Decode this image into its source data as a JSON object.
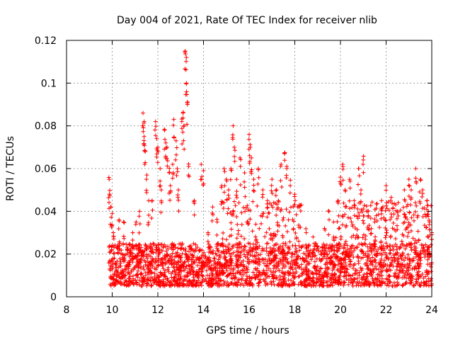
{
  "chart_data": {
    "type": "scatter",
    "title": "Day 004 of 2021, Rate Of TEC Index for receiver nlib",
    "xlabel": "GPS time / hours",
    "ylabel": "ROTI / TECUs",
    "xlim": [
      8,
      24
    ],
    "ylim": [
      0,
      0.12
    ],
    "x_ticks": [
      8,
      10,
      12,
      14,
      16,
      18,
      20,
      22,
      24
    ],
    "x_tick_labels": [
      "8",
      "10",
      "12",
      "14",
      "16",
      "18",
      "20",
      "22",
      "24"
    ],
    "y_ticks": [
      0,
      0.02,
      0.04,
      0.06,
      0.08,
      0.1,
      0.12
    ],
    "y_tick_labels": [
      "0",
      "0.02",
      "0.04",
      "0.06",
      "0.08",
      "0.1",
      "0.12"
    ],
    "grid": true,
    "marker": "plus",
    "marker_color": "#ff0000",
    "series": [
      {
        "name": "ROTI",
        "points": [
          [
            9.87,
            0.055
          ],
          [
            9.88,
            0.048
          ],
          [
            9.95,
            0.042
          ],
          [
            10.0,
            0.039
          ],
          [
            10.05,
            0.03
          ],
          [
            10.3,
            0.036
          ],
          [
            10.5,
            0.035
          ],
          [
            10.9,
            0.03
          ],
          [
            11.05,
            0.035
          ],
          [
            11.2,
            0.04
          ],
          [
            11.35,
            0.086
          ],
          [
            11.4,
            0.082
          ],
          [
            11.4,
            0.075
          ],
          [
            11.45,
            0.068
          ],
          [
            11.5,
            0.055
          ],
          [
            11.6,
            0.045
          ],
          [
            11.75,
            0.045
          ],
          [
            11.9,
            0.082
          ],
          [
            11.95,
            0.074
          ],
          [
            12.0,
            0.07
          ],
          [
            12.1,
            0.06
          ],
          [
            12.15,
            0.05
          ],
          [
            12.3,
            0.078
          ],
          [
            12.35,
            0.072
          ],
          [
            12.4,
            0.07
          ],
          [
            12.5,
            0.058
          ],
          [
            12.55,
            0.052
          ],
          [
            12.65,
            0.062
          ],
          [
            12.7,
            0.083
          ],
          [
            12.8,
            0.073
          ],
          [
            12.85,
            0.06
          ],
          [
            12.9,
            0.05
          ],
          [
            13.05,
            0.082
          ],
          [
            13.1,
            0.086
          ],
          [
            13.15,
            0.08
          ],
          [
            13.2,
            0.115
          ],
          [
            13.25,
            0.112
          ],
          [
            13.25,
            0.1
          ],
          [
            13.3,
            0.09
          ],
          [
            13.35,
            0.061
          ],
          [
            13.6,
            0.045
          ],
          [
            13.9,
            0.062
          ],
          [
            14.0,
            0.059
          ],
          [
            14.2,
            0.03
          ],
          [
            14.4,
            0.042
          ],
          [
            14.6,
            0.035
          ],
          [
            14.8,
            0.052
          ],
          [
            14.9,
            0.06
          ],
          [
            15.0,
            0.055
          ],
          [
            15.1,
            0.05
          ],
          [
            15.2,
            0.06
          ],
          [
            15.3,
            0.08
          ],
          [
            15.35,
            0.07
          ],
          [
            15.45,
            0.055
          ],
          [
            15.6,
            0.065
          ],
          [
            15.8,
            0.058
          ],
          [
            16.0,
            0.076
          ],
          [
            16.05,
            0.07
          ],
          [
            16.1,
            0.065
          ],
          [
            16.2,
            0.055
          ],
          [
            16.4,
            0.06
          ],
          [
            16.6,
            0.05
          ],
          [
            16.8,
            0.045
          ],
          [
            17.0,
            0.055
          ],
          [
            17.2,
            0.05
          ],
          [
            17.4,
            0.062
          ],
          [
            17.55,
            0.067
          ],
          [
            17.65,
            0.061
          ],
          [
            17.8,
            0.052
          ],
          [
            18.0,
            0.048
          ],
          [
            18.2,
            0.043
          ],
          [
            18.5,
            0.03
          ],
          [
            18.8,
            0.028
          ],
          [
            19.3,
            0.032
          ],
          [
            19.5,
            0.04
          ],
          [
            19.7,
            0.035
          ],
          [
            19.9,
            0.045
          ],
          [
            20.0,
            0.056
          ],
          [
            20.1,
            0.062
          ],
          [
            20.2,
            0.05
          ],
          [
            20.4,
            0.055
          ],
          [
            20.6,
            0.045
          ],
          [
            20.8,
            0.06
          ],
          [
            20.9,
            0.05
          ],
          [
            21.0,
            0.064
          ],
          [
            21.2,
            0.04
          ],
          [
            21.5,
            0.035
          ],
          [
            21.8,
            0.045
          ],
          [
            22.0,
            0.052
          ],
          [
            22.2,
            0.045
          ],
          [
            22.5,
            0.04
          ],
          [
            22.8,
            0.05
          ],
          [
            23.0,
            0.055
          ],
          [
            23.1,
            0.05
          ],
          [
            23.3,
            0.06
          ],
          [
            23.5,
            0.055
          ],
          [
            23.6,
            0.05
          ],
          [
            23.8,
            0.045
          ],
          [
            23.9,
            0.035
          ],
          [
            24.0,
            0.03
          ]
        ],
        "dense_band": {
          "x_range": [
            9.85,
            24.0
          ],
          "typical_y_range": [
            0.005,
            0.025
          ],
          "enhanced_y_range": [
            0.005,
            0.045
          ]
        }
      }
    ]
  }
}
